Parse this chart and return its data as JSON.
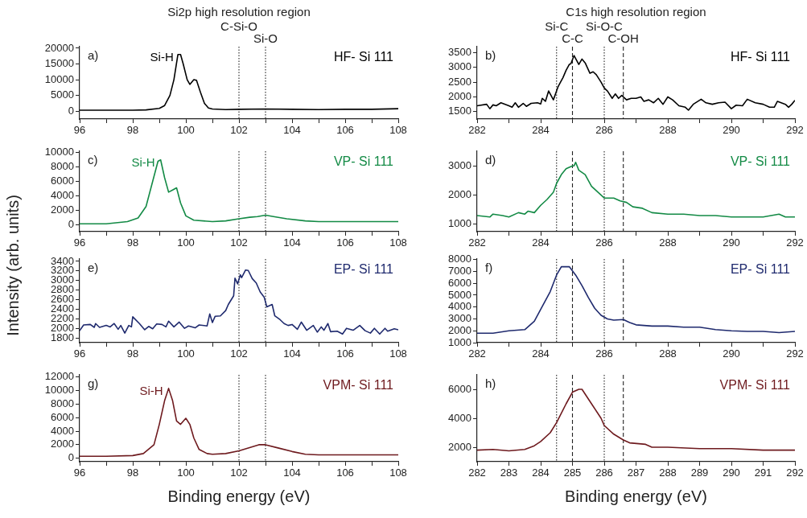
{
  "chart_data": [
    {
      "type": "line",
      "title": "Si2p high resolution region",
      "xlim": [
        96,
        108
      ],
      "xticks": [
        96,
        {
          "value": 97,
          "label": null
        },
        98,
        {
          "value": 99,
          "label": null
        },
        100,
        {
          "value": 101,
          "label": null
        },
        102,
        {
          "value": 103,
          "label": null
        },
        104,
        {
          "value": 105,
          "label": null
        },
        106,
        {
          "value": 107,
          "label": null
        },
        108
      ],
      "ylim": [
        -2500,
        20500
      ],
      "yticks": [
        0,
        5000,
        10000,
        15000,
        20000
      ],
      "x": [
        96,
        97,
        98,
        98.5,
        99,
        99.2,
        99.4,
        99.55,
        99.7,
        99.8,
        99.9,
        100.05,
        100.15,
        100.3,
        100.4,
        100.55,
        100.7,
        100.85,
        101,
        101.5,
        102,
        103,
        104,
        105,
        106,
        107,
        108
      ],
      "series": [
        {
          "name": "HF- Si 111",
          "color": "#000000",
          "values": [
            300,
            300,
            300,
            400,
            900,
            1800,
            5000,
            10000,
            18000,
            18000,
            15000,
            10000,
            8500,
            10000,
            9800,
            6000,
            2500,
            1000,
            700,
            500,
            600,
            700,
            600,
            500,
            600,
            600,
            800
          ]
        }
      ],
      "ref_lines": [
        {
          "axis": "x",
          "value": 102,
          "label": "C-Si-O",
          "line_style": "dotted"
        },
        {
          "axis": "x",
          "value": 103,
          "label": "Si-O",
          "line_style": "dotted"
        }
      ],
      "annotations": [
        "a)",
        {
          "text": "Si-H",
          "x": 99.75,
          "y": 18000
        }
      ]
    },
    {
      "type": "line",
      "title": "C1s high resolution region",
      "xlim": [
        282,
        292
      ],
      "xticks": [
        282,
        {
          "value": 283,
          "label": null
        },
        284,
        {
          "value": 285,
          "label": null
        },
        286,
        {
          "value": 287,
          "label": null
        },
        288,
        {
          "value": 289,
          "label": null
        },
        290,
        {
          "value": 291,
          "label": null
        },
        292
      ],
      "ylim": [
        1250,
        3700
      ],
      "yticks": [
        1500,
        2000,
        2500,
        3000,
        3500
      ],
      "x": [
        282,
        282.3,
        282.4,
        282.5,
        282.6,
        282.75,
        283,
        283.1,
        283.2,
        283.3,
        283.45,
        283.55,
        283.7,
        283.9,
        284,
        284.05,
        284.15,
        284.25,
        284.4,
        284.55,
        284.6,
        284.7,
        284.8,
        284.9,
        284.95,
        285.05,
        285.2,
        285.3,
        285.4,
        285.55,
        285.65,
        285.75,
        285.9,
        286,
        286.1,
        286.25,
        286.35,
        286.45,
        286.55,
        286.7,
        286.85,
        287,
        287.15,
        287.25,
        287.4,
        287.55,
        287.7,
        287.85,
        288,
        288.15,
        288.35,
        288.55,
        288.65,
        288.8,
        289.05,
        289.2,
        289.4,
        289.6,
        289.8,
        290,
        290.15,
        290.35,
        290.5,
        290.75,
        291,
        291.2,
        291.35,
        291.45,
        291.7,
        291.8,
        291.9,
        292
      ],
      "series": [
        {
          "name": "HF- Si 111",
          "color": "#000000",
          "values": [
            1700,
            1750,
            1600,
            1730,
            1700,
            1800,
            1700,
            1650,
            1800,
            1650,
            1780,
            1680,
            1780,
            1800,
            1760,
            1950,
            1850,
            2200,
            1900,
            2350,
            2450,
            2650,
            2900,
            3100,
            3120,
            3400,
            3100,
            3280,
            3150,
            2800,
            2850,
            2750,
            2500,
            2300,
            2200,
            1950,
            2100,
            1950,
            2050,
            1900,
            1950,
            1950,
            2000,
            1850,
            1900,
            1800,
            1950,
            1750,
            2000,
            1900,
            1700,
            1650,
            1550,
            1750,
            1920,
            1800,
            1750,
            1800,
            1820,
            1600,
            1720,
            1700,
            1920,
            1800,
            1750,
            1650,
            1650,
            1850,
            1750,
            1650,
            1750,
            1880
          ]
        }
      ],
      "ref_lines": [
        {
          "axis": "x",
          "value": 284.5,
          "label": "Si-C",
          "line_style": "dotted"
        },
        {
          "axis": "x",
          "value": 285,
          "label": "C-C",
          "line_style": "dashed"
        },
        {
          "axis": "x",
          "value": 286,
          "label": "Si-O-C",
          "line_style": "dotted"
        },
        {
          "axis": "x",
          "value": 286.6,
          "label": "C-OH",
          "line_style": "dashed"
        }
      ],
      "annotations": [
        "b)"
      ]
    },
    {
      "type": "line",
      "ylabel": "Intensity (arb. units)",
      "xlim": [
        96,
        108
      ],
      "xticks": [
        96,
        {
          "value": 97,
          "label": null
        },
        98,
        {
          "value": 99,
          "label": null
        },
        100,
        {
          "value": 101,
          "label": null
        },
        102,
        {
          "value": 103,
          "label": null
        },
        104,
        {
          "value": 105,
          "label": null
        },
        106,
        {
          "value": 107,
          "label": null
        },
        108
      ],
      "ylim": [
        -1000,
        10200
      ],
      "yticks": [
        0,
        2000,
        4000,
        6000,
        8000,
        10000
      ],
      "x": [
        96,
        97,
        97.8,
        98.2,
        98.5,
        98.75,
        98.95,
        99.05,
        99.2,
        99.35,
        99.5,
        99.65,
        99.8,
        100,
        100.3,
        101,
        101.5,
        102,
        102.4,
        102.7,
        103,
        103.3,
        103.8,
        104.5,
        105,
        106,
        107,
        108
      ],
      "series": [
        {
          "name": "VP- Si 111",
          "color": "#138a45",
          "values": [
            100,
            100,
            400,
            900,
            2500,
            6000,
            8800,
            9000,
            6500,
            4500,
            4800,
            5100,
            3000,
            1200,
            600,
            400,
            500,
            800,
            1000,
            1100,
            1300,
            1100,
            800,
            500,
            400,
            400,
            400,
            400
          ]
        }
      ],
      "ref_lines": [
        {
          "axis": "x",
          "value": 102,
          "line_style": "dotted"
        },
        {
          "axis": "x",
          "value": 103,
          "line_style": "dotted"
        }
      ],
      "annotations": [
        "c)",
        {
          "text": "Si-H",
          "x": 99.05,
          "y": 9000
        }
      ]
    },
    {
      "type": "line",
      "xlim": [
        282,
        292
      ],
      "xticks": [
        282,
        {
          "value": 283,
          "label": null
        },
        284,
        {
          "value": 285,
          "label": null
        },
        286,
        {
          "value": 287,
          "label": null
        },
        288,
        {
          "value": 289,
          "label": null
        },
        290,
        {
          "value": 291,
          "label": null
        },
        292
      ],
      "ylim": [
        750,
        3500
      ],
      "yticks": [
        1000,
        2000,
        3000
      ],
      "x": [
        282,
        282.4,
        282.5,
        282.8,
        283,
        283.3,
        283.5,
        283.6,
        283.8,
        284,
        284.2,
        284.4,
        284.5,
        284.65,
        284.8,
        285,
        285.05,
        285.1,
        285.2,
        285.4,
        285.6,
        285.8,
        286,
        286.3,
        286.5,
        286.7,
        286.9,
        287.2,
        287.5,
        288,
        288.5,
        289,
        289.5,
        290,
        290.5,
        291,
        291.5,
        291.7,
        292
      ],
      "series": [
        {
          "name": "VP- Si 111",
          "color": "#138a45",
          "values": [
            1300,
            1250,
            1350,
            1300,
            1250,
            1400,
            1350,
            1450,
            1400,
            1650,
            1850,
            2100,
            2400,
            2700,
            2900,
            3000,
            3000,
            3120,
            2850,
            2700,
            2300,
            2100,
            1900,
            1900,
            1800,
            1750,
            1600,
            1550,
            1400,
            1350,
            1350,
            1300,
            1300,
            1250,
            1250,
            1250,
            1350,
            1250,
            1250
          ]
        }
      ],
      "ref_lines": [
        {
          "axis": "x",
          "value": 284.5,
          "line_style": "dotted"
        },
        {
          "axis": "x",
          "value": 285,
          "line_style": "dashed"
        },
        {
          "axis": "x",
          "value": 286,
          "line_style": "dotted"
        },
        {
          "axis": "x",
          "value": 286.6,
          "line_style": "dashed"
        }
      ],
      "annotations": [
        "d)"
      ]
    },
    {
      "type": "line",
      "xlim": [
        96,
        108
      ],
      "xticks": [
        96,
        {
          "value": 97,
          "label": null
        },
        98,
        {
          "value": 99,
          "label": null
        },
        100,
        {
          "value": 101,
          "label": null
        },
        102,
        {
          "value": 103,
          "label": null
        },
        104,
        {
          "value": 105,
          "label": null
        },
        106,
        {
          "value": 107,
          "label": null
        },
        108
      ],
      "ylim": [
        1700,
        3450
      ],
      "yticks": [
        1800,
        2000,
        2200,
        2400,
        2600,
        2800,
        3000,
        3200,
        3400
      ],
      "x": [
        96,
        96.15,
        96.4,
        96.55,
        96.6,
        96.75,
        97,
        97.15,
        97.3,
        97.45,
        97.55,
        97.7,
        97.85,
        97.95,
        98,
        98.25,
        98.45,
        98.6,
        98.75,
        98.9,
        99.1,
        99.25,
        99.35,
        99.55,
        99.75,
        99.95,
        100.1,
        100.35,
        100.5,
        100.8,
        100.9,
        101,
        101.1,
        101.3,
        101.5,
        101.6,
        101.8,
        101.85,
        101.95,
        102.05,
        102.1,
        102.25,
        102.35,
        102.5,
        102.65,
        102.8,
        102.95,
        103.05,
        103.25,
        103.35,
        103.55,
        103.7,
        103.85,
        104,
        104.2,
        104.35,
        104.55,
        104.8,
        104.95,
        105.1,
        105.2,
        105.35,
        105.45,
        105.7,
        105.9,
        106.05,
        106.3,
        106.55,
        106.75,
        106.95,
        107.1,
        107.3,
        107.5,
        107.6,
        107.85,
        108
      ],
      "series": [
        {
          "name": "EP- Si 111",
          "color": "#1f2a6e",
          "values": [
            1950,
            2070,
            2080,
            2020,
            2100,
            2020,
            2060,
            2030,
            2100,
            1980,
            2060,
            1900,
            2060,
            2030,
            2240,
            2100,
            1970,
            2040,
            1990,
            2090,
            2080,
            2030,
            2150,
            2030,
            2130,
            2000,
            2050,
            2010,
            2070,
            2050,
            2300,
            2120,
            2250,
            2260,
            2370,
            2500,
            2680,
            3050,
            2930,
            3120,
            3060,
            3220,
            3210,
            3040,
            2950,
            2760,
            2650,
            2450,
            2500,
            2260,
            2180,
            2100,
            2060,
            2080,
            1980,
            2130,
            1960,
            2060,
            1920,
            2030,
            1960,
            2100,
            1930,
            1940,
            1880,
            2000,
            1960,
            2060,
            1950,
            1900,
            2000,
            1880,
            2000,
            1940,
            1990,
            1970
          ]
        }
      ],
      "ref_lines": [
        {
          "axis": "x",
          "value": 102,
          "line_style": "dotted"
        },
        {
          "axis": "x",
          "value": 103,
          "line_style": "dotted"
        }
      ],
      "annotations": [
        "e)"
      ]
    },
    {
      "type": "line",
      "xlim": [
        282,
        292
      ],
      "xticks": [
        282,
        {
          "value": 283,
          "label": null
        },
        284,
        {
          "value": 285,
          "label": null
        },
        286,
        {
          "value": 287,
          "label": null
        },
        288,
        {
          "value": 289,
          "label": null
        },
        290,
        {
          "value": 291,
          "label": null
        },
        292
      ],
      "ylim": [
        1000,
        8050
      ],
      "yticks": [
        1000,
        2000,
        3000,
        4000,
        5000,
        6000,
        7000,
        8000
      ],
      "x": [
        282,
        282.5,
        283,
        283.5,
        283.8,
        284,
        284.3,
        284.5,
        284.65,
        284.9,
        285.1,
        285.3,
        285.5,
        285.7,
        285.9,
        286.1,
        286.3,
        286.6,
        286.8,
        287,
        287.5,
        288,
        288.5,
        289,
        289.5,
        290,
        290.5,
        291,
        291.5,
        292
      ],
      "series": [
        {
          "name": "EP- Si 111",
          "color": "#1f2a6e",
          "values": [
            1800,
            1800,
            2000,
            2100,
            2800,
            3800,
            5300,
            6700,
            7400,
            7400,
            6700,
            5800,
            4800,
            3900,
            3300,
            3000,
            2900,
            2950,
            2700,
            2500,
            2400,
            2400,
            2300,
            2300,
            2100,
            2000,
            1950,
            1950,
            1850,
            1950
          ]
        }
      ],
      "ref_lines": [
        {
          "axis": "x",
          "value": 284.5,
          "line_style": "dotted"
        },
        {
          "axis": "x",
          "value": 285,
          "line_style": "dashed"
        },
        {
          "axis": "x",
          "value": 286,
          "line_style": "dotted"
        },
        {
          "axis": "x",
          "value": 286.6,
          "line_style": "dashed"
        }
      ],
      "annotations": [
        "f)"
      ]
    },
    {
      "type": "line",
      "xlabel": "Binding energy (eV)",
      "xlim": [
        96,
        108
      ],
      "xticks": [
        96,
        {
          "value": 97,
          "label": null
        },
        98,
        {
          "value": 99,
          "label": null
        },
        100,
        {
          "value": 101,
          "label": null
        },
        102,
        {
          "value": 103,
          "label": null
        },
        104,
        {
          "value": 105,
          "label": null
        },
        106,
        {
          "value": 107,
          "label": null
        },
        108
      ],
      "ylim": [
        -500,
        12300
      ],
      "yticks": [
        0,
        2000,
        4000,
        6000,
        8000,
        10000,
        12000
      ],
      "x": [
        96,
        97,
        98,
        98.4,
        98.8,
        99,
        99.2,
        99.35,
        99.5,
        99.65,
        99.8,
        100,
        100.15,
        100.3,
        100.5,
        100.8,
        101,
        101.5,
        102,
        102.5,
        102.75,
        103,
        103.5,
        104,
        104.5,
        105,
        106,
        107,
        108
      ],
      "series": [
        {
          "name": "VPM- Si 111",
          "color": "#6e1a1e",
          "values": [
            300,
            300,
            400,
            700,
            2000,
            5000,
            8500,
            10300,
            8500,
            5500,
            5000,
            5900,
            5000,
            3000,
            1300,
            700,
            600,
            700,
            1100,
            1700,
            2000,
            2000,
            1500,
            1000,
            600,
            500,
            500,
            500,
            500
          ]
        }
      ],
      "ref_lines": [
        {
          "axis": "x",
          "value": 102,
          "line_style": "dotted"
        },
        {
          "axis": "x",
          "value": 103,
          "line_style": "dotted"
        }
      ],
      "annotations": [
        "g)",
        {
          "text": "Si-H",
          "x": 99.35,
          "y": 10300
        }
      ]
    },
    {
      "type": "line",
      "xlabel": "Binding energy (eV)",
      "xlim": [
        282,
        292
      ],
      "xticks": [
        282,
        283,
        284,
        285,
        286,
        287,
        288,
        289,
        290,
        291,
        292
      ],
      "ylim": [
        1000,
        7000
      ],
      "yticks": [
        2000,
        4000,
        6000
      ],
      "x": [
        282,
        282.5,
        283,
        283.5,
        283.8,
        284,
        284.3,
        284.5,
        284.8,
        285,
        285.2,
        285.3,
        285.6,
        285.9,
        286,
        286.3,
        286.6,
        286.8,
        287.3,
        287.5,
        288,
        289,
        290,
        291,
        292
      ],
      "series": [
        {
          "name": "VPM- Si 111",
          "color": "#6e1a1e",
          "values": [
            1800,
            1850,
            1750,
            1850,
            2100,
            2400,
            3000,
            3700,
            5000,
            5800,
            6000,
            6000,
            5000,
            4000,
            3500,
            2900,
            2500,
            2300,
            2200,
            2000,
            2000,
            1900,
            1900,
            1800,
            1800
          ]
        }
      ],
      "ref_lines": [
        {
          "axis": "x",
          "value": 284.5,
          "line_style": "dotted"
        },
        {
          "axis": "x",
          "value": 285,
          "line_style": "dashed"
        },
        {
          "axis": "x",
          "value": 286,
          "line_style": "dotted"
        },
        {
          "axis": "x",
          "value": 286.6,
          "line_style": "dashed"
        }
      ],
      "annotations": [
        "h)"
      ]
    }
  ]
}
